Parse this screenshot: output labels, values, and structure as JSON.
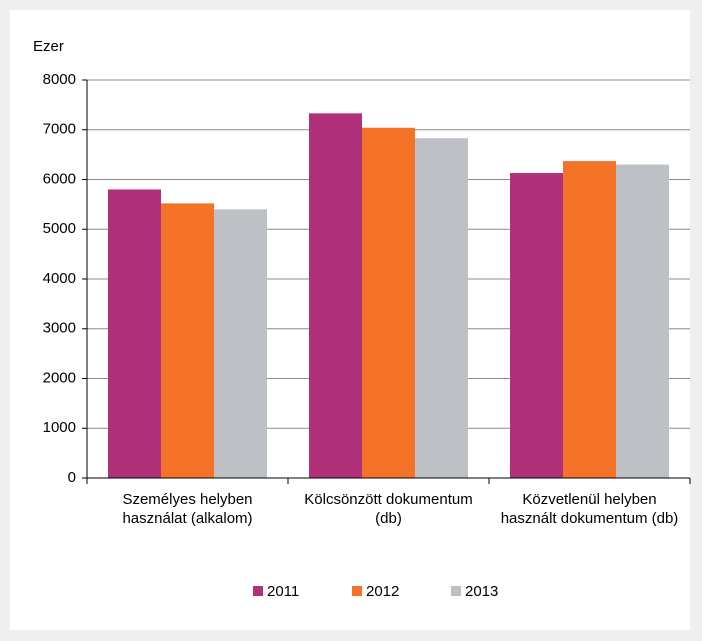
{
  "chart_data": {
    "type": "bar",
    "y_label": "Ezer",
    "categories": [
      "Személyes helyben használat (alkalom)",
      "Kölcsönzött dokumentum (db)",
      "Közvetlenül helyben használt dokumentum (db)"
    ],
    "series": [
      {
        "name": "2011",
        "color": "#b0307a",
        "values": [
          5800,
          7330,
          6130
        ]
      },
      {
        "name": "2012",
        "color": "#f47329",
        "values": [
          5520,
          7040,
          6370
        ]
      },
      {
        "name": "2013",
        "color": "#bdc1c5",
        "values": [
          5400,
          6830,
          6300
        ]
      }
    ],
    "ylim": [
      0,
      8000
    ],
    "yticks": [
      0,
      1000,
      2000,
      3000,
      4000,
      5000,
      6000,
      7000,
      8000
    ],
    "grid": true,
    "legend": "bottom"
  }
}
